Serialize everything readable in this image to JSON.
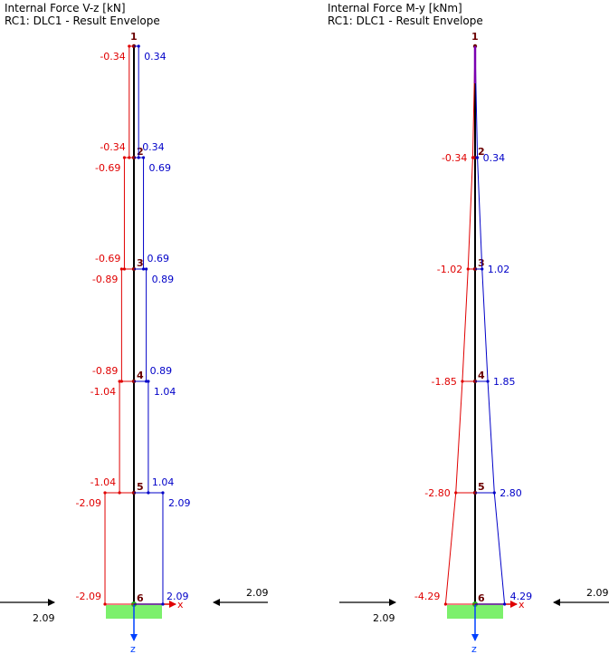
{
  "colors": {
    "negative": "#e00000",
    "positive": "#0000c8",
    "member": "#000000",
    "node_label": "#6b0000",
    "support": "#7cf06c",
    "axis_x": "#e00000",
    "axis_z": "#0040ff",
    "arrow": "#000000"
  },
  "panels": [
    {
      "id": "vz",
      "title": "Internal Force V-z [kN]",
      "subtitle": "RC1: DLC1 - Result Envelope",
      "axis_x_label": "x",
      "axis_z_label": "z",
      "reaction_left": "2.09",
      "reaction_right": "2.09",
      "nodes": [
        "1",
        "2",
        "3",
        "4",
        "5",
        "6"
      ],
      "segments": [
        {
          "min_top": "-0.34",
          "max_top": "0.34",
          "min_bot": "-0.34",
          "max_bot": "0.34",
          "min": -0.34,
          "max": 0.34
        },
        {
          "min_top": "-0.69",
          "max_top": "0.69",
          "min_bot": "-0.69",
          "max_bot": "0.69",
          "min": -0.69,
          "max": 0.69
        },
        {
          "min_top": "-0.89",
          "max_top": "0.89",
          "min_bot": "-0.89",
          "max_bot": "0.89",
          "min": -0.89,
          "max": 0.89
        },
        {
          "min_top": "-1.04",
          "max_top": "1.04",
          "min_bot": "-1.04",
          "max_bot": "1.04",
          "min": -1.04,
          "max": 1.04
        },
        {
          "min_top": "-2.09",
          "max_top": "2.09",
          "min_bot": "-2.09",
          "max_bot": "2.09",
          "min": -2.09,
          "max": 2.09
        }
      ]
    },
    {
      "id": "my",
      "title": "Internal Force M-y [kNm]",
      "subtitle": "RC1: DLC1 - Result Envelope",
      "axis_x_label": "x",
      "axis_z_label": "z",
      "reaction_left": "2.09",
      "reaction_right": "2.09",
      "nodes": [
        "1",
        "2",
        "3",
        "4",
        "5",
        "6"
      ],
      "node_values": [
        {
          "min": 0,
          "max": 0,
          "min_label": "",
          "max_label": ""
        },
        {
          "min": -0.34,
          "max": 0.34,
          "min_label": "-0.34",
          "max_label": "0.34"
        },
        {
          "min": -1.02,
          "max": 1.02,
          "min_label": "-1.02",
          "max_label": "1.02"
        },
        {
          "min": -1.85,
          "max": 1.85,
          "min_label": "-1.85",
          "max_label": "1.85"
        },
        {
          "min": -2.8,
          "max": 2.8,
          "min_label": "-2.80",
          "max_label": "2.80"
        },
        {
          "min": -4.29,
          "max": 4.29,
          "min_label": "-4.29",
          "max_label": "4.29"
        }
      ]
    }
  ]
}
